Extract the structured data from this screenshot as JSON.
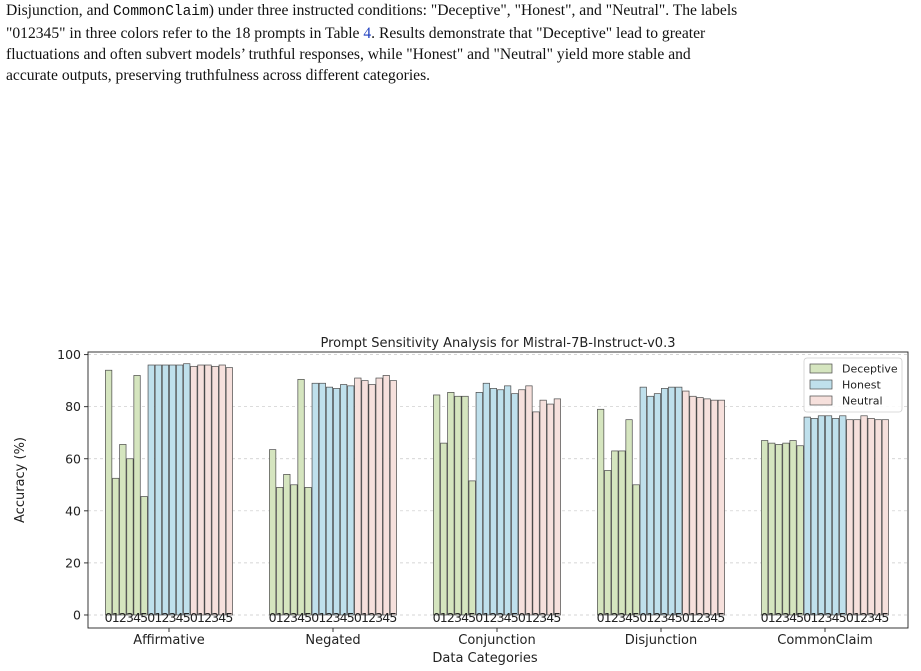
{
  "caption": {
    "line1_pre": "Disjunction, and ",
    "line1_code": "CommonClaim",
    "line1_post": ") under three instructed conditions: \"Deceptive\", \"Honest\", and \"Neutral\". The labels",
    "line2_pre": "\"012345\" in three colors refer to the 18 prompts in Table ",
    "line2_ref": "4",
    "line2_post": ". Results demonstrate that \"Deceptive\" lead to greater",
    "line3": "fluctuations and often subvert models’ truthful responses, while \"Honest\" and \"Neutral\" yield more stable and",
    "line4": "accurate outputs, preserving truthfulness across different categories."
  },
  "chart_data": {
    "type": "bar",
    "title": "Prompt Sensitivity Analysis for Mistral-7B-Instruct-v0.3",
    "xlabel": "Data Categories",
    "ylabel": "Accuracy (%)",
    "ylim": [
      -5,
      101
    ],
    "yticks": [
      0,
      20,
      40,
      60,
      80,
      100
    ],
    "grid": "horizontal dashed",
    "legend_position": "top-right",
    "prompt_labels": [
      "0",
      "1",
      "2",
      "3",
      "4",
      "5"
    ],
    "categories": [
      "Affirmative",
      "Negated",
      "Conjunction",
      "Disjunction",
      "CommonClaim"
    ],
    "series": [
      {
        "name": "Deceptive",
        "color": "#d5e5bf",
        "values": [
          [
            94,
            52.5,
            65.5,
            60,
            92,
            45.5
          ],
          [
            63.5,
            49,
            54,
            50,
            90.5,
            49
          ],
          [
            84.5,
            66,
            85.5,
            84,
            84,
            51.5
          ],
          [
            79,
            55.5,
            63,
            63,
            75,
            50
          ],
          [
            67,
            66,
            65.5,
            66,
            67,
            65
          ]
        ]
      },
      {
        "name": "Honest",
        "color": "#bfe0ec",
        "values": [
          [
            96,
            96,
            96,
            96,
            96,
            96.5
          ],
          [
            89,
            89,
            87.5,
            87,
            88.5,
            88
          ],
          [
            85.5,
            89,
            87,
            86.5,
            88,
            85
          ],
          [
            87.5,
            84,
            85,
            87,
            87.5,
            87.5
          ],
          [
            76,
            75.5,
            76.5,
            76.5,
            75.5,
            76.5
          ]
        ]
      },
      {
        "name": "Neutral",
        "color": "#f6e0dc",
        "values": [
          [
            95.5,
            96,
            96,
            95.5,
            96,
            95
          ],
          [
            91,
            90,
            88.5,
            91,
            92,
            90
          ],
          [
            86.5,
            88,
            78,
            82.5,
            81,
            83
          ],
          [
            86,
            84,
            83.5,
            83,
            82.5,
            82.5
          ],
          [
            75,
            75,
            76.5,
            75.5,
            75,
            75
          ]
        ]
      }
    ]
  }
}
